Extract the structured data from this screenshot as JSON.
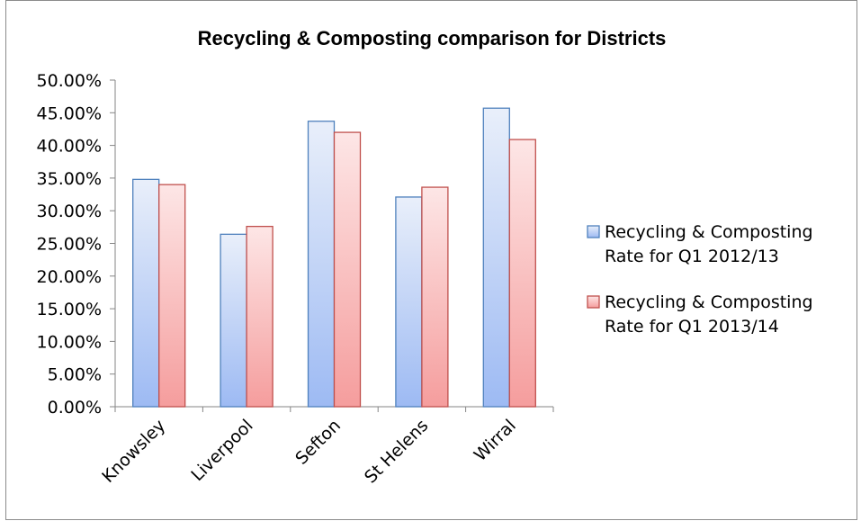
{
  "chart_data": {
    "type": "bar",
    "title": "Recycling & Composting comparison for Districts",
    "xlabel": "",
    "ylabel": "",
    "categories": [
      "Knowsley",
      "Liverpool",
      "Sefton",
      "St Helens",
      "Wirral"
    ],
    "series": [
      {
        "name": "Recycling & Composting Rate for Q1 2012/13",
        "values": [
          34.8,
          26.4,
          43.7,
          32.1,
          45.7
        ],
        "color": "#4f81bd"
      },
      {
        "name": "Recycling & Composting Rate for Q1 2013/14",
        "values": [
          34.0,
          27.6,
          42.0,
          33.6,
          40.9
        ],
        "color": "#c0504d"
      }
    ],
    "ylim": [
      0,
      50
    ],
    "y_ticks": [
      "0.00%",
      "5.00%",
      "10.00%",
      "15.00%",
      "20.00%",
      "25.00%",
      "30.00%",
      "35.00%",
      "40.00%",
      "45.00%",
      "50.00%"
    ],
    "grid": false,
    "legend_position": "right"
  }
}
